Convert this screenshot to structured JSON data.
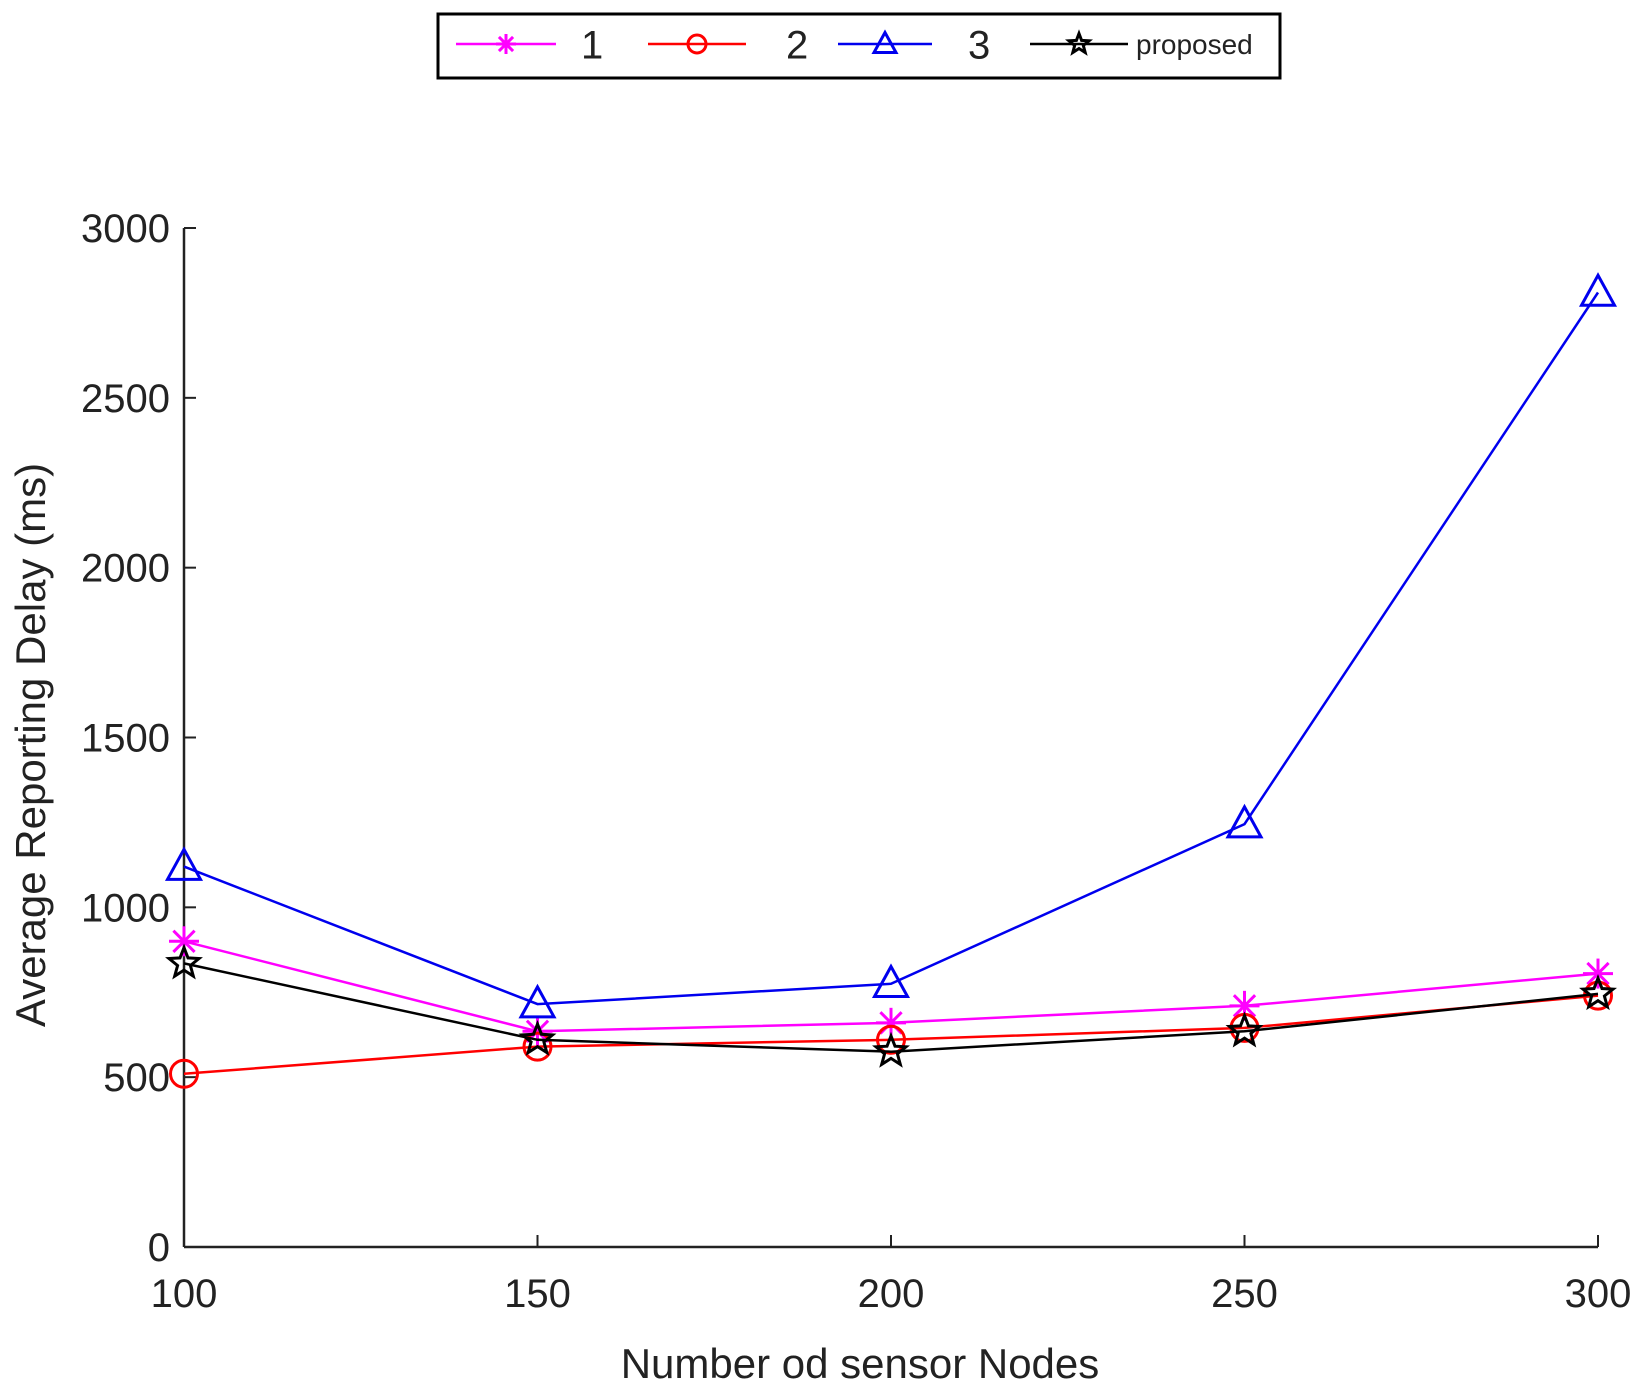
{
  "chart_data": {
    "type": "line",
    "title": "",
    "xlabel": "Number od sensor Nodes",
    "ylabel": "Average Reporting Delay (ms)",
    "x": [
      100,
      150,
      200,
      250,
      300
    ],
    "xlim": [
      100,
      300
    ],
    "ylim": [
      0,
      3000
    ],
    "xticks": [
      "100",
      "150",
      "200",
      "250",
      "300"
    ],
    "yticks": [
      "0",
      "500",
      "1000",
      "1500",
      "2000",
      "2500",
      "3000"
    ],
    "legend_position": "top-center",
    "series": [
      {
        "name": "1",
        "color": "#ff00ff",
        "marker": "asterisk",
        "values": [
          900,
          635,
          660,
          710,
          805
        ]
      },
      {
        "name": "2",
        "color": "#ff0000",
        "marker": "circle",
        "values": [
          510,
          590,
          610,
          645,
          740
        ]
      },
      {
        "name": "3",
        "color": "#0000ee",
        "marker": "triangle",
        "values": [
          1120,
          715,
          775,
          1245,
          2810
        ]
      },
      {
        "name": "proposed",
        "color": "#000000",
        "marker": "star",
        "values": [
          835,
          610,
          575,
          635,
          745
        ]
      }
    ]
  }
}
